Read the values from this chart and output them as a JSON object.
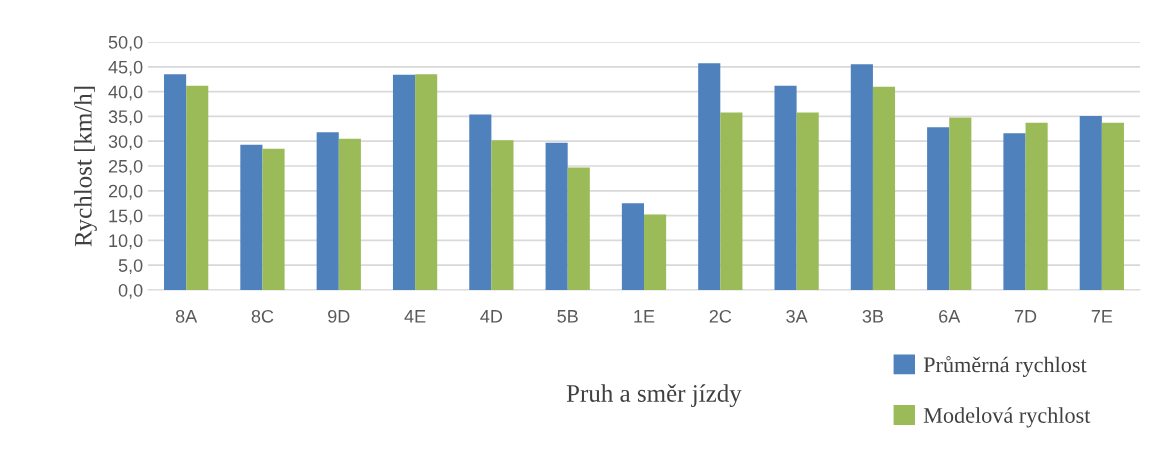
{
  "chart_data": {
    "type": "bar",
    "xlabel": "Pruh a směr jízdy",
    "ylabel": "Rychlost [km/h]",
    "categories": [
      "8A",
      "8C",
      "9D",
      "4E",
      "4D",
      "5B",
      "1E",
      "2C",
      "3A",
      "3B",
      "6A",
      "7D",
      "7E"
    ],
    "series": [
      {
        "name": "Průměrná rychlost",
        "color": "#4f81bd",
        "values": [
          43.5,
          29.3,
          31.8,
          43.4,
          35.4,
          29.7,
          17.5,
          45.7,
          41.2,
          45.5,
          32.8,
          31.6,
          35.1
        ]
      },
      {
        "name": "Modelová rychlost",
        "color": "#9bbb59",
        "values": [
          41.2,
          28.5,
          30.5,
          43.5,
          30.2,
          24.7,
          15.2,
          35.8,
          35.8,
          41.0,
          34.8,
          33.7,
          33.7
        ]
      }
    ],
    "ylim": [
      0,
      50
    ],
    "yticks": [
      {
        "value": 0,
        "label": "0,0"
      },
      {
        "value": 5,
        "label": "5,0"
      },
      {
        "value": 10,
        "label": "10,0"
      },
      {
        "value": 15,
        "label": "15,0"
      },
      {
        "value": 20,
        "label": "20,0"
      },
      {
        "value": 25,
        "label": "25,0"
      },
      {
        "value": 30,
        "label": "30,0"
      },
      {
        "value": 35,
        "label": "35,0"
      },
      {
        "value": 40,
        "label": "40,0"
      },
      {
        "value": 45,
        "label": "45,0"
      },
      {
        "value": 50,
        "label": "50,0"
      }
    ],
    "grid": "y",
    "legend": "bottom right"
  }
}
